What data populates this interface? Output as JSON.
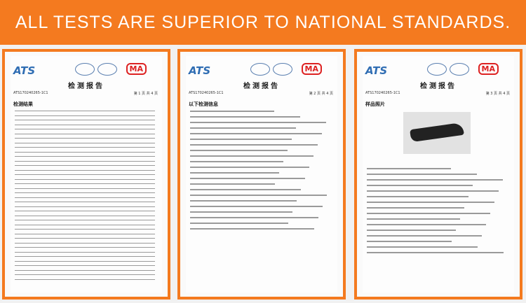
{
  "header": {
    "title": "ALL TESTS ARE SUPERIOR TO NATIONAL STANDARDS."
  },
  "documents": [
    {
      "logo": "ATS",
      "mark": "MA",
      "title": "检测报告",
      "report_no": "ATS170240265-1C1",
      "page": "第 1 页 共 4 页",
      "section": "检测结果"
    },
    {
      "logo": "ATS",
      "mark": "MA",
      "title": "检测报告",
      "report_no": "ATS170240265-1C1",
      "page": "第 2 页 共 4 页",
      "section": "以下检测信息"
    },
    {
      "logo": "ATS",
      "mark": "MA",
      "title": "检测报告",
      "report_no": "ATS170240265-1C1",
      "page": "第 3 页 共 4 页",
      "section": "样品照片"
    }
  ]
}
